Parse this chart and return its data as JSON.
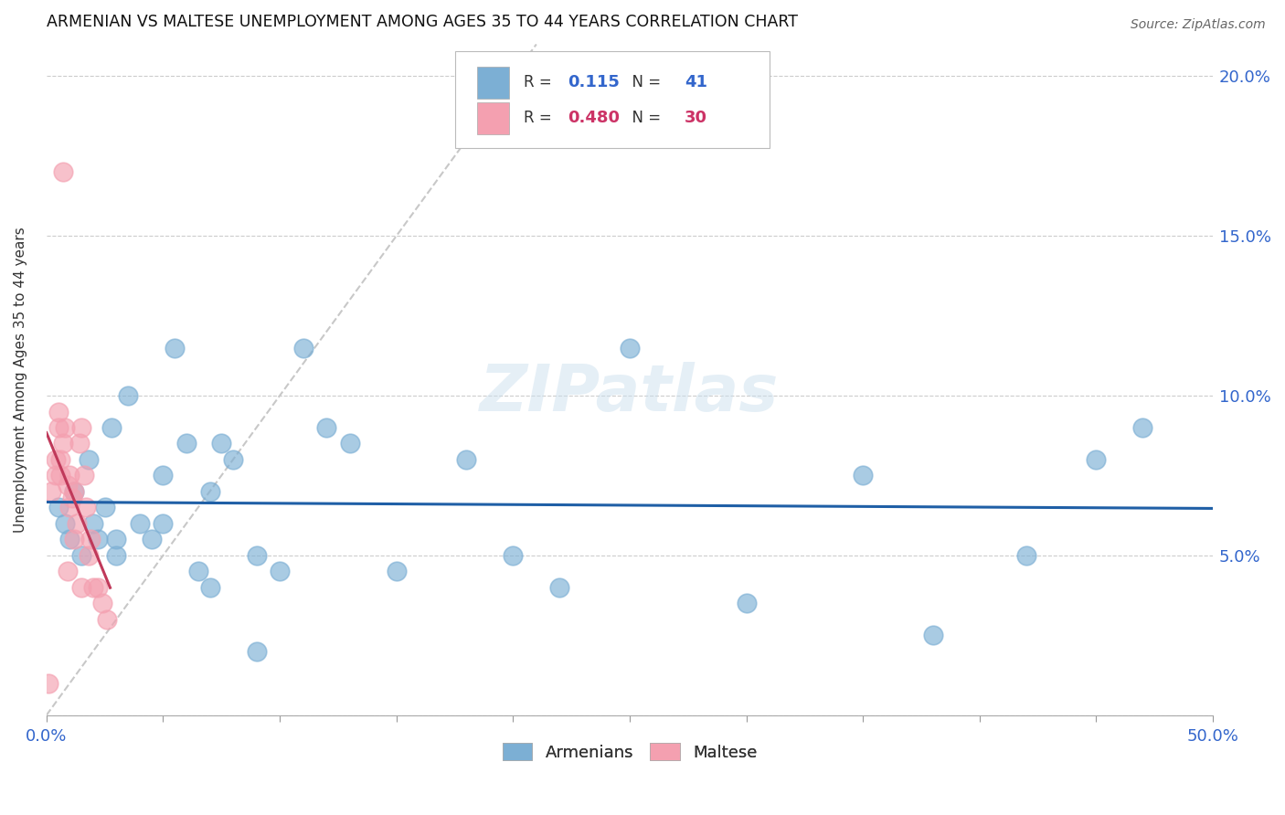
{
  "title": "ARMENIAN VS MALTESE UNEMPLOYMENT AMONG AGES 35 TO 44 YEARS CORRELATION CHART",
  "source": "Source: ZipAtlas.com",
  "ylabel": "Unemployment Among Ages 35 to 44 years",
  "xlim": [
    0.0,
    0.5
  ],
  "ylim": [
    0.0,
    0.21
  ],
  "xticks": [
    0.0,
    0.05,
    0.1,
    0.15,
    0.2,
    0.25,
    0.3,
    0.35,
    0.4,
    0.45,
    0.5
  ],
  "xticklabels_show": [
    "0.0%",
    "",
    "",
    "",
    "",
    "",
    "",
    "",
    "",
    "",
    "50.0%"
  ],
  "yticks": [
    0.0,
    0.05,
    0.1,
    0.15,
    0.2
  ],
  "yticklabels_right": [
    "",
    "5.0%",
    "10.0%",
    "15.0%",
    "20.0%"
  ],
  "armenian_color": "#7cafd4",
  "maltese_color": "#f4a0b0",
  "trend_armenian_color": "#1f5fa6",
  "trend_maltese_color": "#c0395a",
  "diagonal_color": "#c8c8c8",
  "legend_armenian_R": "0.115",
  "legend_armenian_N": "41",
  "legend_maltese_R": "0.480",
  "legend_maltese_N": "30",
  "armenian_x": [
    0.005,
    0.008,
    0.01,
    0.012,
    0.015,
    0.018,
    0.02,
    0.022,
    0.025,
    0.028,
    0.03,
    0.035,
    0.04,
    0.045,
    0.05,
    0.055,
    0.06,
    0.065,
    0.07,
    0.075,
    0.08,
    0.09,
    0.1,
    0.11,
    0.12,
    0.13,
    0.15,
    0.18,
    0.2,
    0.22,
    0.25,
    0.3,
    0.35,
    0.38,
    0.42,
    0.45,
    0.47,
    0.03,
    0.05,
    0.07,
    0.09
  ],
  "armenian_y": [
    0.065,
    0.06,
    0.055,
    0.07,
    0.05,
    0.08,
    0.06,
    0.055,
    0.065,
    0.09,
    0.055,
    0.1,
    0.06,
    0.055,
    0.075,
    0.115,
    0.085,
    0.045,
    0.04,
    0.085,
    0.08,
    0.02,
    0.045,
    0.115,
    0.09,
    0.085,
    0.045,
    0.08,
    0.05,
    0.04,
    0.115,
    0.035,
    0.075,
    0.025,
    0.05,
    0.08,
    0.09,
    0.05,
    0.06,
    0.07,
    0.05
  ],
  "maltese_x": [
    0.002,
    0.004,
    0.004,
    0.005,
    0.006,
    0.006,
    0.007,
    0.008,
    0.009,
    0.01,
    0.01,
    0.011,
    0.012,
    0.013,
    0.014,
    0.015,
    0.016,
    0.017,
    0.018,
    0.019,
    0.02,
    0.022,
    0.024,
    0.026,
    0.005,
    0.007,
    0.009,
    0.012,
    0.001,
    0.015
  ],
  "maltese_y": [
    0.07,
    0.075,
    0.08,
    0.09,
    0.075,
    0.08,
    0.085,
    0.09,
    0.072,
    0.075,
    0.065,
    0.068,
    0.055,
    0.06,
    0.085,
    0.09,
    0.075,
    0.065,
    0.05,
    0.055,
    0.04,
    0.04,
    0.035,
    0.03,
    0.095,
    0.17,
    0.045,
    0.07,
    0.01,
    0.04
  ],
  "watermark": "ZIPatlas",
  "background_color": "#ffffff",
  "grid_color": "#cccccc"
}
